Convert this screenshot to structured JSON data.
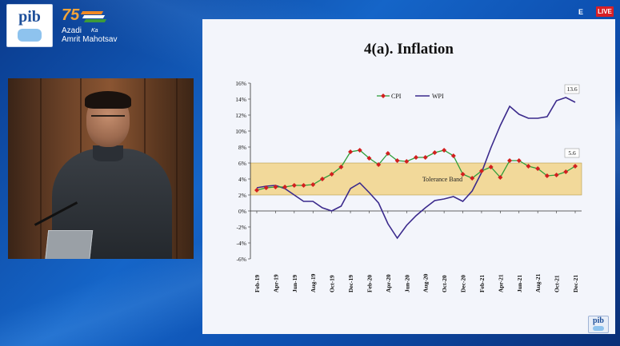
{
  "header": {
    "pib_logo_text": "pib",
    "azadi": {
      "number": "75",
      "line1": "Azadi",
      "ka": "Ka",
      "line2": "Amrit Mahotsav"
    },
    "live": {
      "prefix": "E",
      "label": "LIVE"
    }
  },
  "watermark": {
    "text": "pib"
  },
  "colors": {
    "cpi": "#d21f1f",
    "cpi_line": "#2f9e3a",
    "wpi": "#3b2a8c",
    "band": "#f2d99a",
    "slide_bg": "#f3f5fb",
    "brand_blue": "#1565c8"
  },
  "slide": {
    "title": "4(a). Inflation"
  },
  "chart_data": {
    "type": "line",
    "title": "4(a). Inflation",
    "xlabel": "",
    "ylabel": "",
    "ylim": [
      -6,
      16
    ],
    "yticks": [
      "16%",
      "14%",
      "12%",
      "10%",
      "8%",
      "6%",
      "4%",
      "2%",
      "0%",
      "-2%",
      "-4%",
      "-6%"
    ],
    "grid": false,
    "legend": "top-left",
    "x_tick_labels": [
      "Feb-19",
      "Apr-19",
      "Jun-19",
      "Aug-19",
      "Oct-19",
      "Dec-19",
      "Feb-20",
      "Apr-20",
      "Jun-20",
      "Aug-20",
      "Oct-20",
      "Dec-20",
      "Feb-21",
      "Apr-21",
      "Jun-21",
      "Aug-21",
      "Oct-21",
      "Dec-21"
    ],
    "tolerance_band": {
      "label": "Tolerance Band",
      "low": 2,
      "high": 6
    },
    "annotations": [
      {
        "series": "WPI",
        "value": "13.6"
      },
      {
        "series": "CPI",
        "value": "5.6"
      }
    ],
    "x": [
      "Feb-19",
      "Mar-19",
      "Apr-19",
      "May-19",
      "Jun-19",
      "Jul-19",
      "Aug-19",
      "Sep-19",
      "Oct-19",
      "Nov-19",
      "Dec-19",
      "Jan-20",
      "Feb-20",
      "Mar-20",
      "Apr-20",
      "May-20",
      "Jun-20",
      "Jul-20",
      "Aug-20",
      "Sep-20",
      "Oct-20",
      "Nov-20",
      "Dec-20",
      "Jan-21",
      "Feb-21",
      "Mar-21",
      "Apr-21",
      "May-21",
      "Jun-21",
      "Jul-21",
      "Aug-21",
      "Sep-21",
      "Oct-21",
      "Nov-21",
      "Dec-21"
    ],
    "series": [
      {
        "name": "CPI",
        "values": [
          2.6,
          2.9,
          3.0,
          3.0,
          3.2,
          3.2,
          3.3,
          4.0,
          4.6,
          5.5,
          7.4,
          7.6,
          6.6,
          5.8,
          7.2,
          6.3,
          6.2,
          6.7,
          6.7,
          7.3,
          7.6,
          6.9,
          4.6,
          4.1,
          5.0,
          5.5,
          4.2,
          6.3,
          6.3,
          5.6,
          5.3,
          4.4,
          4.5,
          4.9,
          5.6
        ]
      },
      {
        "name": "WPI",
        "values": [
          2.9,
          3.1,
          3.2,
          2.8,
          2.0,
          1.2,
          1.2,
          0.4,
          0.0,
          0.6,
          2.8,
          3.5,
          2.3,
          1.0,
          -1.6,
          -3.4,
          -1.8,
          -0.6,
          0.4,
          1.3,
          1.5,
          1.8,
          1.2,
          2.5,
          4.8,
          7.9,
          10.7,
          13.1,
          12.1,
          11.6,
          11.6,
          11.8,
          13.8,
          14.2,
          13.6
        ]
      }
    ]
  }
}
